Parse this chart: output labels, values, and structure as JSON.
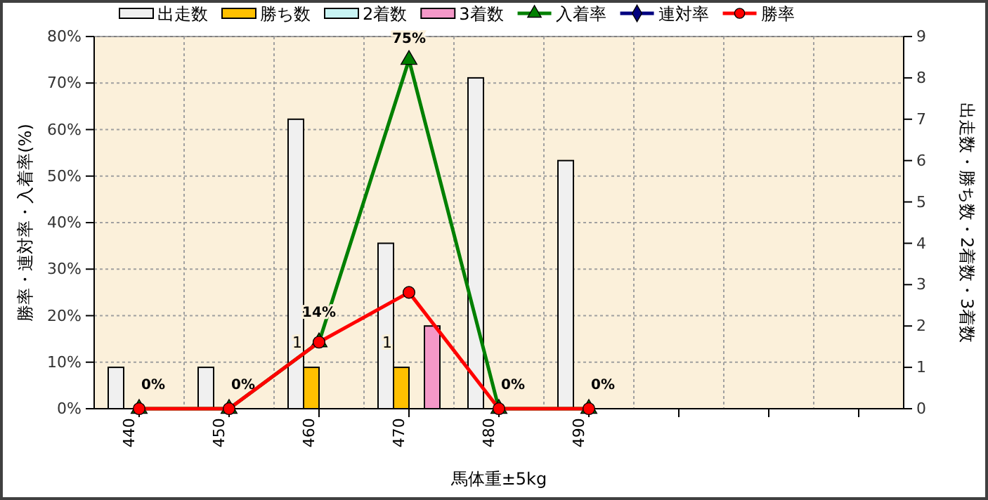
{
  "chart_data": {
    "type": "bar",
    "xlabel": "馬体重±5kg",
    "ylabel": "勝率・連対率・入着率(%)",
    "y2label": "出走数・勝ち数・2着数・3着数",
    "categories": [
      "440",
      "450",
      "460",
      "470",
      "480",
      "490",
      null,
      null,
      null
    ],
    "ylim": [
      0,
      80
    ],
    "yticks": [
      {
        "value": 0,
        "label": "0%"
      },
      {
        "value": 10,
        "label": "10%"
      },
      {
        "value": 20,
        "label": "20%"
      },
      {
        "value": 30,
        "label": "30%"
      },
      {
        "value": 40,
        "label": "40%"
      },
      {
        "value": 50,
        "label": "50%"
      },
      {
        "value": 60,
        "label": "60%"
      },
      {
        "value": 70,
        "label": "70%"
      },
      {
        "value": 80,
        "label": "80%"
      }
    ],
    "y2lim": [
      0,
      9
    ],
    "y2ticks": [
      0,
      1,
      2,
      3,
      4,
      5,
      6,
      7,
      8,
      9
    ],
    "grid": true,
    "legend": "top",
    "series": [
      {
        "name": "出走数",
        "axis": "y2",
        "color": "#f0f0f0",
        "values": [
          1,
          1,
          7,
          4,
          8,
          6,
          null,
          null,
          null
        ]
      },
      {
        "name": "勝ち数",
        "axis": "y2",
        "color": "#ffc000",
        "values": [
          0,
          0,
          1,
          1,
          0,
          0,
          null,
          null,
          null
        ],
        "value_labels": [
          null,
          null,
          "1",
          "1",
          null,
          null,
          null,
          null,
          null
        ]
      },
      {
        "name": "2着数",
        "axis": "y2",
        "color": "#c8f4f4",
        "values": [
          0,
          0,
          0,
          0,
          0,
          0,
          null,
          null,
          null
        ]
      },
      {
        "name": "3着数",
        "axis": "y2",
        "color": "#f498c8",
        "values": [
          0,
          0,
          0,
          2,
          0,
          0,
          null,
          null,
          null
        ]
      },
      {
        "name": "入着率",
        "type": "line",
        "axis": "y",
        "color": "#008000",
        "marker": "triangle",
        "values": [
          0,
          0,
          14.3,
          75,
          0,
          0,
          null,
          null,
          null
        ],
        "value_labels": [
          "0%",
          "0%",
          "14%",
          "75%",
          "0%",
          "0%",
          null,
          null,
          null
        ]
      },
      {
        "name": "連対率",
        "type": "line",
        "axis": "y",
        "color": "#000080",
        "marker": "diamond",
        "values": [
          null,
          null,
          null,
          null,
          null,
          null,
          null,
          null,
          null
        ]
      },
      {
        "name": "勝率",
        "type": "line",
        "axis": "y",
        "color": "#ff0000",
        "marker": "circle",
        "values": [
          0,
          0,
          14.3,
          25,
          0,
          0,
          null,
          null,
          null
        ]
      }
    ]
  }
}
